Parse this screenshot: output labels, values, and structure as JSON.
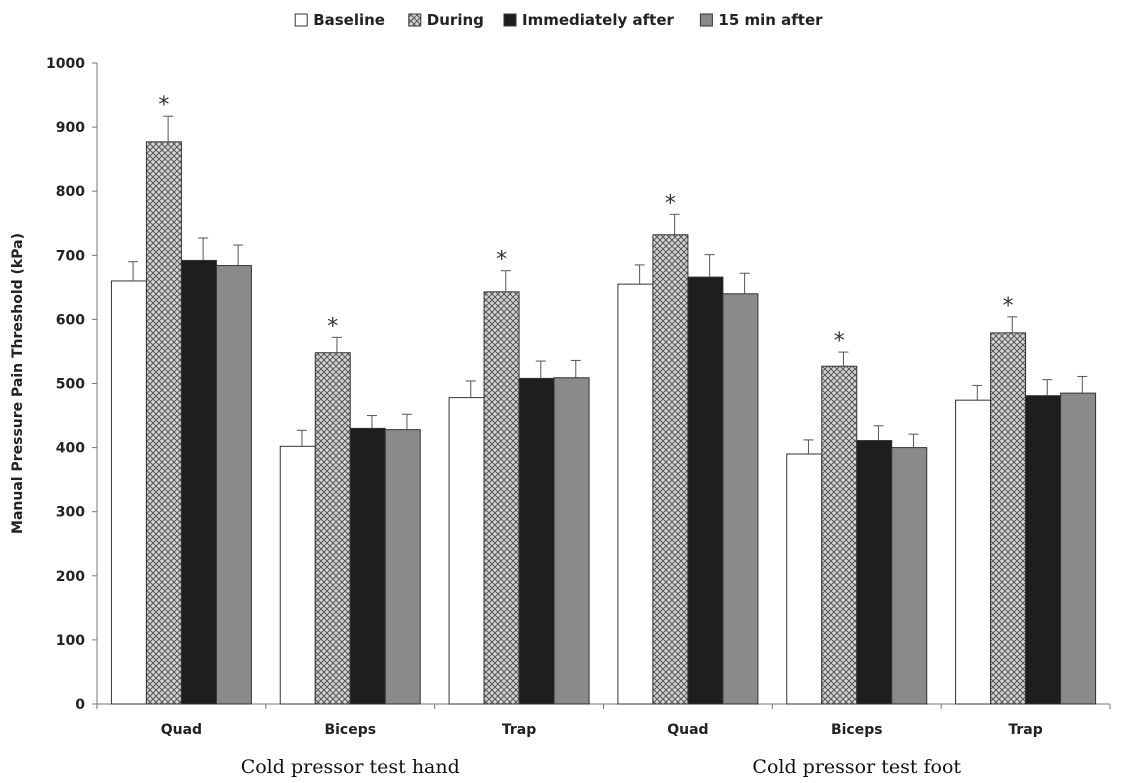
{
  "chart_data": {
    "type": "bar",
    "title": "",
    "ylabel": "Manual Pressure Pain Threshold (kPa)",
    "ylim": [
      0,
      1000
    ],
    "yticks": [
      "0",
      "100",
      "200",
      "300",
      "400",
      "500",
      "600",
      "700",
      "800",
      "900",
      "1000"
    ],
    "categories": [
      "Quad",
      "Biceps",
      "Trap",
      "Quad",
      "Biceps",
      "Trap"
    ],
    "groups": [
      {
        "label": "Cold pressor test hand",
        "categories": [
          0,
          1,
          2
        ]
      },
      {
        "label": "Cold pressor test foot",
        "categories": [
          3,
          4,
          5
        ]
      }
    ],
    "legend_position": "top",
    "series": [
      {
        "name": "Baseline",
        "fill": "#ffffff",
        "pattern": "none",
        "values": [
          660,
          402,
          478,
          655,
          390,
          474
        ],
        "errors": [
          30,
          25,
          26,
          30,
          22,
          23
        ],
        "significant": [
          false,
          false,
          false,
          false,
          false,
          false
        ]
      },
      {
        "name": "During",
        "fill": "#cccccc",
        "pattern": "crosshatch",
        "values": [
          877,
          548,
          643,
          732,
          527,
          579
        ],
        "errors": [
          40,
          24,
          33,
          32,
          22,
          25
        ],
        "significant": [
          true,
          true,
          true,
          true,
          true,
          true
        ]
      },
      {
        "name": "Immediately after",
        "fill": "#1e1e1e",
        "pattern": "none",
        "values": [
          692,
          430,
          508,
          666,
          411,
          481
        ],
        "errors": [
          35,
          20,
          27,
          35,
          23,
          25
        ],
        "significant": [
          false,
          false,
          false,
          false,
          false,
          false
        ]
      },
      {
        "name": "15 min after",
        "fill": "#8a8a8a",
        "pattern": "none",
        "values": [
          684,
          428,
          509,
          640,
          400,
          485
        ],
        "errors": [
          32,
          24,
          27,
          32,
          21,
          26
        ],
        "significant": [
          false,
          false,
          false,
          false,
          false,
          false
        ]
      }
    ],
    "annotation_symbol": "*"
  }
}
